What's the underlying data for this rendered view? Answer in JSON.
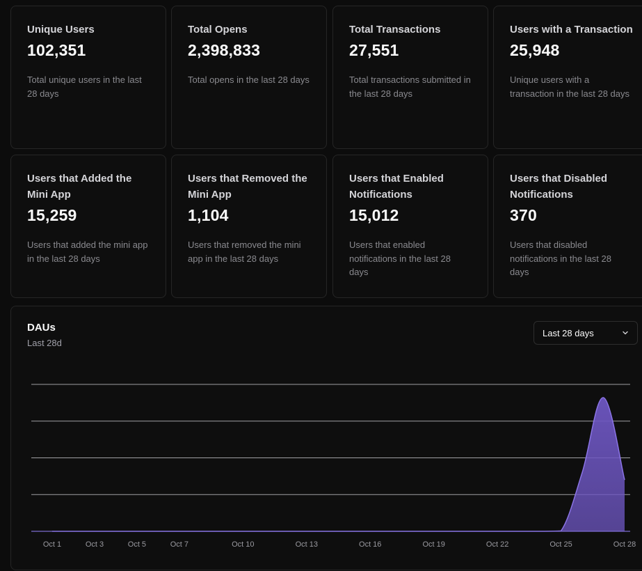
{
  "stats": [
    {
      "title": "Unique Users",
      "value": "102,351",
      "desc": "Total unique users in the last 28 days"
    },
    {
      "title": "Total Opens",
      "value": "2,398,833",
      "desc": "Total opens in the last 28 days"
    },
    {
      "title": "Total Transactions",
      "value": "27,551",
      "desc": "Total transactions submitted in the last 28 days"
    },
    {
      "title": "Users with a Transaction",
      "value": "25,948",
      "desc": "Unique users with a transaction in the last 28 days"
    },
    {
      "title": "Users that Added the Mini App",
      "value": "15,259",
      "desc": "Users that added the mini app in the last 28 days"
    },
    {
      "title": "Users that Removed the Mini App",
      "value": "1,104",
      "desc": "Users that removed the mini app in the last 28 days"
    },
    {
      "title": "Users that Enabled Notifications",
      "value": "15,012",
      "desc": "Users that enabled notifications in the last 28 days"
    },
    {
      "title": "Users that Disabled Notifications",
      "value": "370",
      "desc": "Users that disabled notifications in the last 28 days"
    }
  ],
  "chart": {
    "title": "DAUs",
    "subtitle": "Last 28d",
    "range_label": "Last 28 days"
  },
  "chart_data": {
    "type": "area",
    "title": "DAUs",
    "subtitle": "Last 28d",
    "x": [
      "Oct 1",
      "Oct 2",
      "Oct 3",
      "Oct 4",
      "Oct 5",
      "Oct 6",
      "Oct 7",
      "Oct 8",
      "Oct 9",
      "Oct 10",
      "Oct 11",
      "Oct 12",
      "Oct 13",
      "Oct 14",
      "Oct 15",
      "Oct 16",
      "Oct 17",
      "Oct 18",
      "Oct 19",
      "Oct 20",
      "Oct 21",
      "Oct 22",
      "Oct 23",
      "Oct 24",
      "Oct 25",
      "Oct 26",
      "Oct 27",
      "Oct 28"
    ],
    "tick_labels": [
      "Oct 1",
      "Oct 3",
      "Oct 5",
      "Oct 7",
      "Oct 10",
      "Oct 13",
      "Oct 16",
      "Oct 19",
      "Oct 22",
      "Oct 25",
      "Oct 28"
    ],
    "series": [
      {
        "name": "DAUs",
        "values": [
          0,
          0,
          0,
          0,
          0,
          0,
          0,
          0,
          0,
          0,
          0,
          0,
          0,
          0,
          0,
          0,
          0,
          0,
          0,
          0,
          0,
          0,
          0,
          0,
          0.3,
          40,
          91,
          35
        ]
      }
    ],
    "ylim": [
      0,
      100
    ],
    "gridlines": 4,
    "color": "#6d56c1"
  }
}
